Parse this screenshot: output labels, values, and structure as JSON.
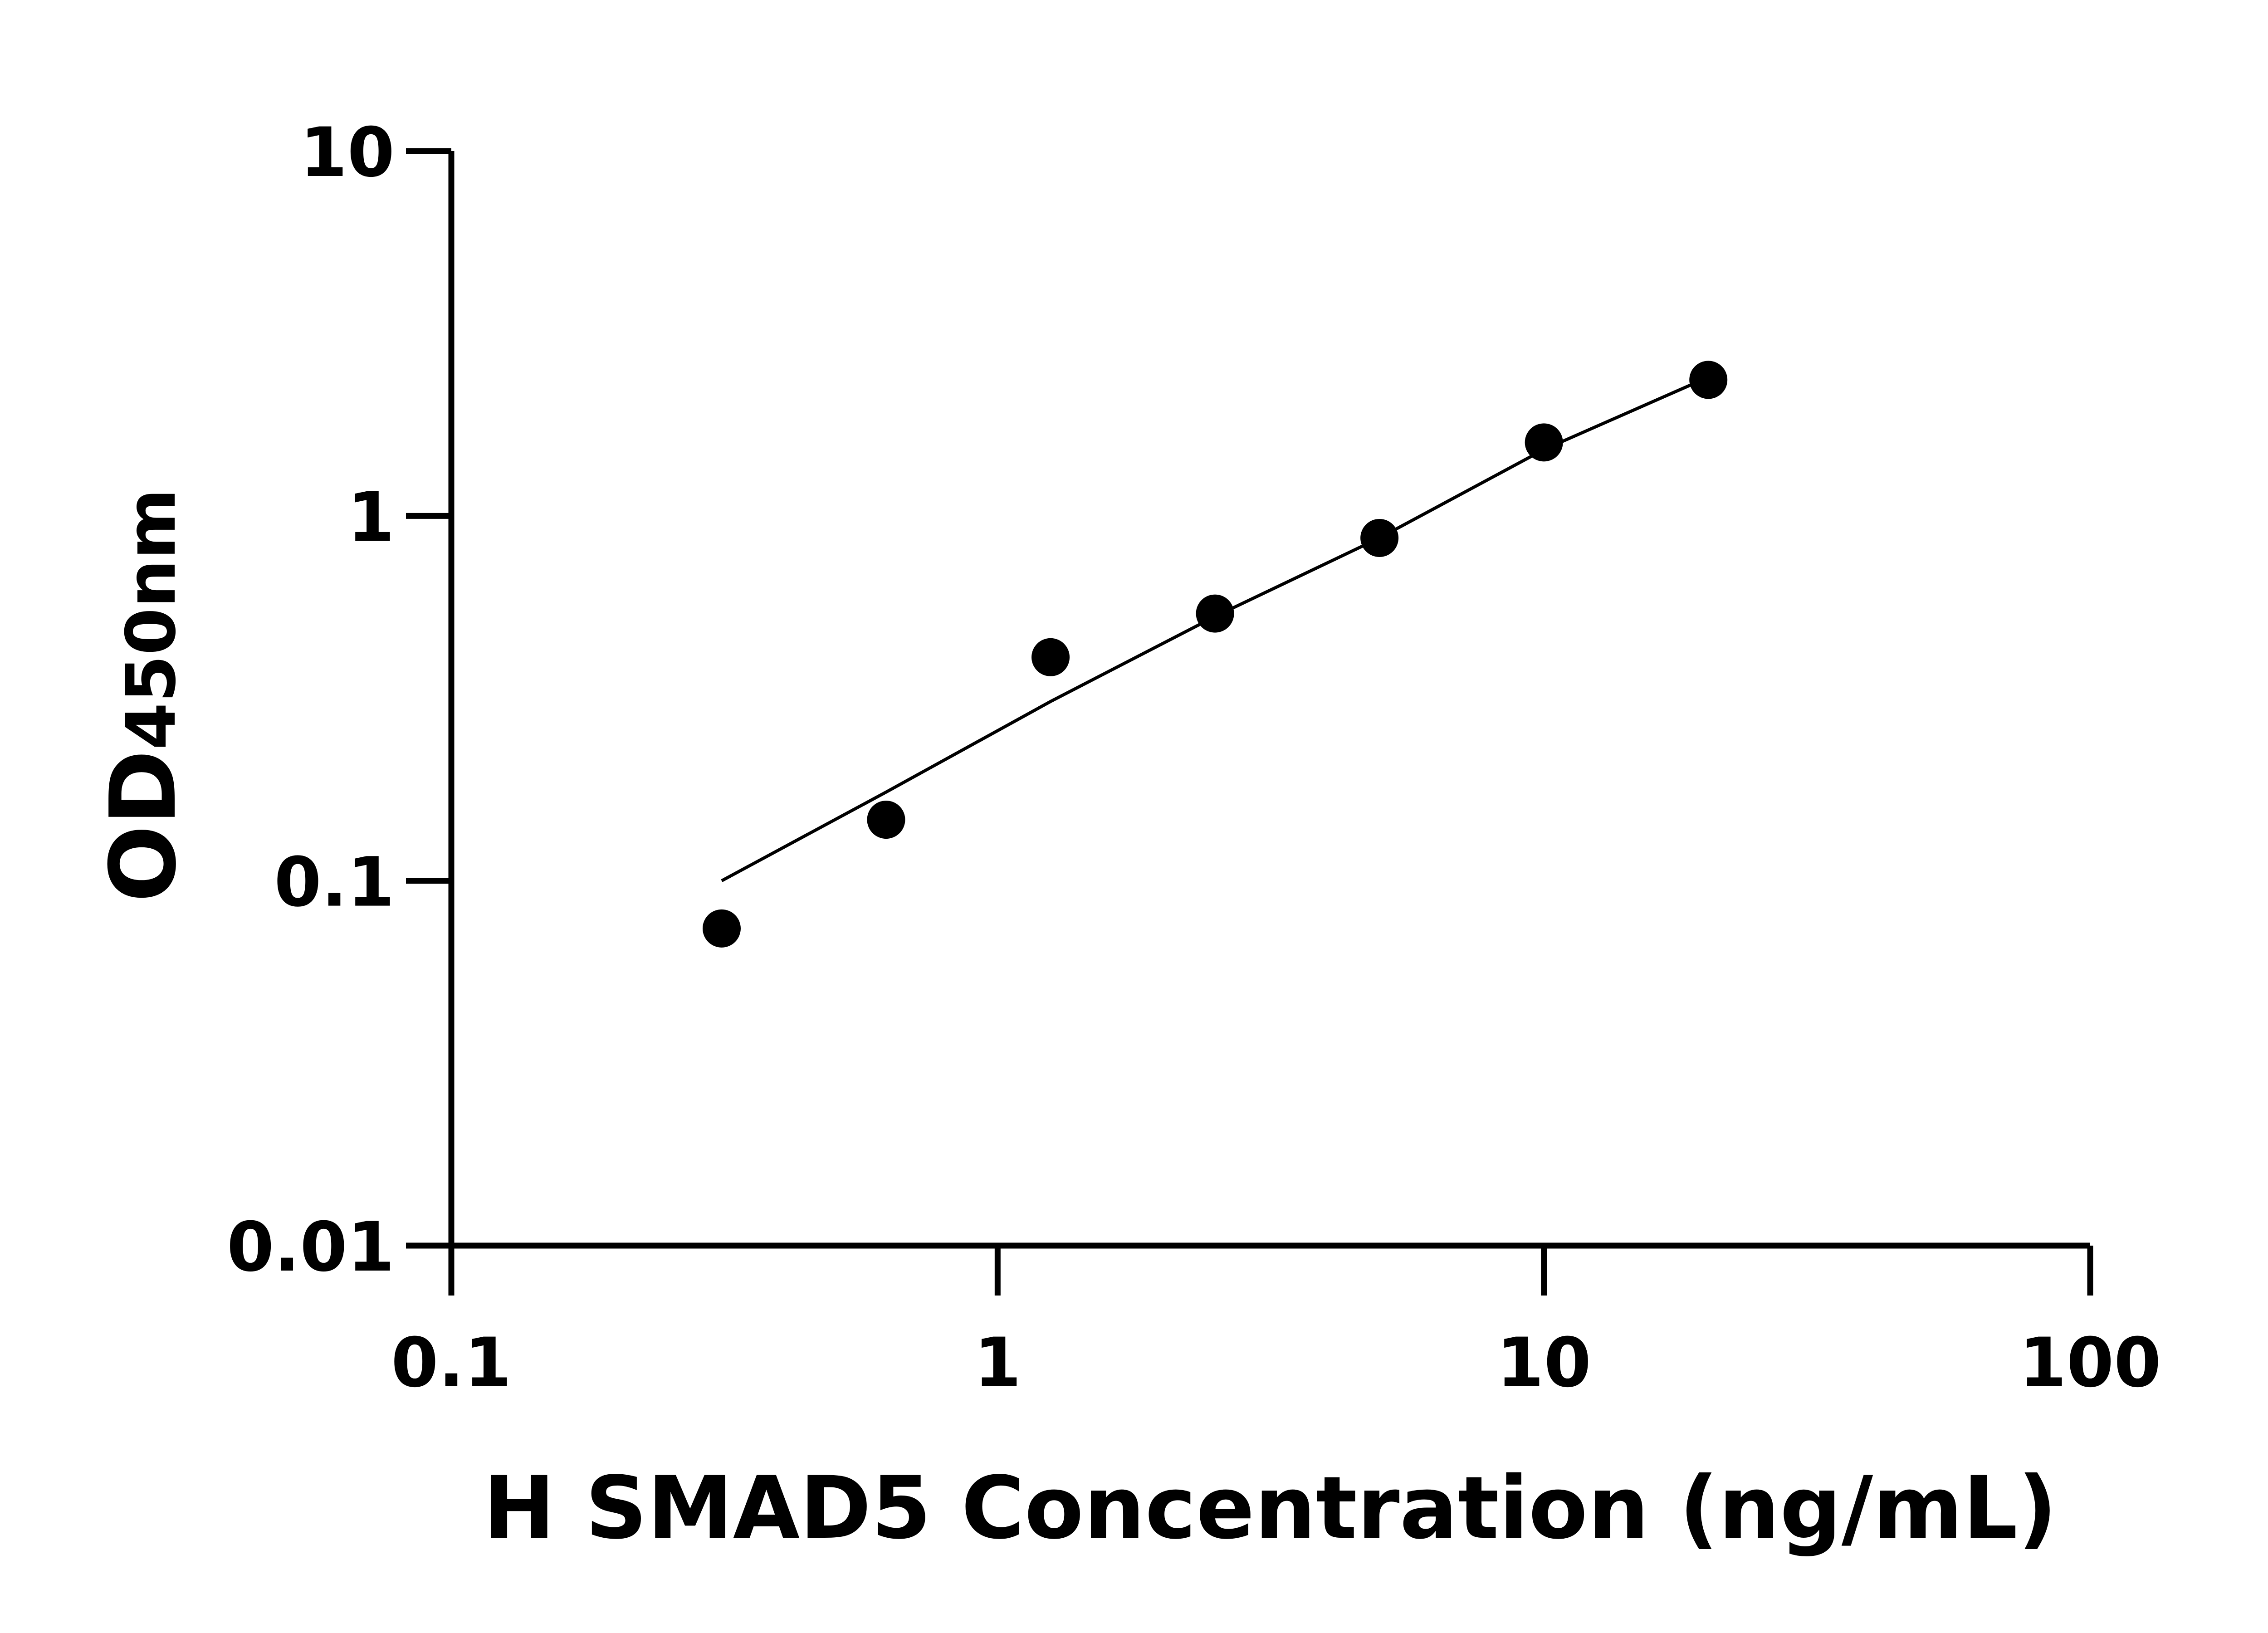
{
  "chart_data": {
    "type": "scatter",
    "title": "",
    "xlabel": "H SMAD5 Concentration (ng/mL)",
    "ylabel": {
      "main": "OD",
      "subscript": "450nm"
    },
    "xscale": "log",
    "yscale": "log",
    "xlim": [
      0.1,
      100
    ],
    "ylim": [
      0.01,
      10
    ],
    "xticks": [
      "0.1",
      "1",
      "10",
      "100"
    ],
    "yticks": [
      "0.01",
      "0.1",
      "1",
      "10"
    ],
    "grid": false,
    "legend": "none",
    "series": [
      {
        "type": "scatter",
        "x": [
          0.3125,
          0.625,
          1.25,
          2.5,
          5,
          10,
          20
        ],
        "y": [
          0.074,
          0.147,
          0.41,
          0.54,
          0.87,
          1.59,
          2.36
        ],
        "color": "#000000"
      },
      {
        "type": "line",
        "x": [
          0.3125,
          0.625,
          1.25,
          2.5,
          5,
          10,
          20
        ],
        "y": [
          0.1,
          0.175,
          0.31,
          0.53,
          0.87,
          1.52,
          2.4
        ],
        "color": "#000000"
      }
    ]
  }
}
